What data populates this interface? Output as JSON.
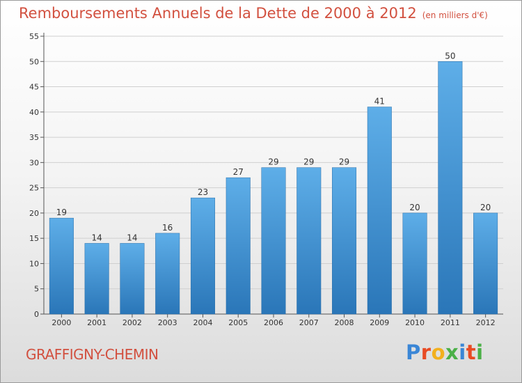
{
  "header": {
    "title": "Remboursements Annuels de la Dette de 2000 à 2012",
    "subtitle": "(en milliers d'€)"
  },
  "footer": {
    "commune": "GRAFFIGNY-CHEMIN",
    "brand": [
      "P",
      "r",
      "o",
      "x",
      "i",
      "t",
      "i"
    ]
  },
  "colors": {
    "bar_top": "#5eaee8",
    "bar_bottom": "#2a76b8",
    "title": "#d2503f",
    "grid": "#cfcfcf"
  },
  "chart_data": {
    "type": "bar",
    "title": "Remboursements Annuels de la Dette de 2000 à 2012",
    "subtitle": "(en milliers d'€)",
    "categories": [
      "2000",
      "2001",
      "2002",
      "2003",
      "2004",
      "2005",
      "2006",
      "2007",
      "2008",
      "2009",
      "2010",
      "2011",
      "2012"
    ],
    "values": [
      19,
      14,
      14,
      16,
      23,
      27,
      29,
      29,
      29,
      41,
      20,
      50,
      20
    ],
    "ylim": [
      0,
      55
    ],
    "yticks": [
      0,
      5,
      10,
      15,
      20,
      25,
      30,
      35,
      40,
      45,
      50,
      55
    ],
    "grid": true,
    "data_labels": true
  }
}
